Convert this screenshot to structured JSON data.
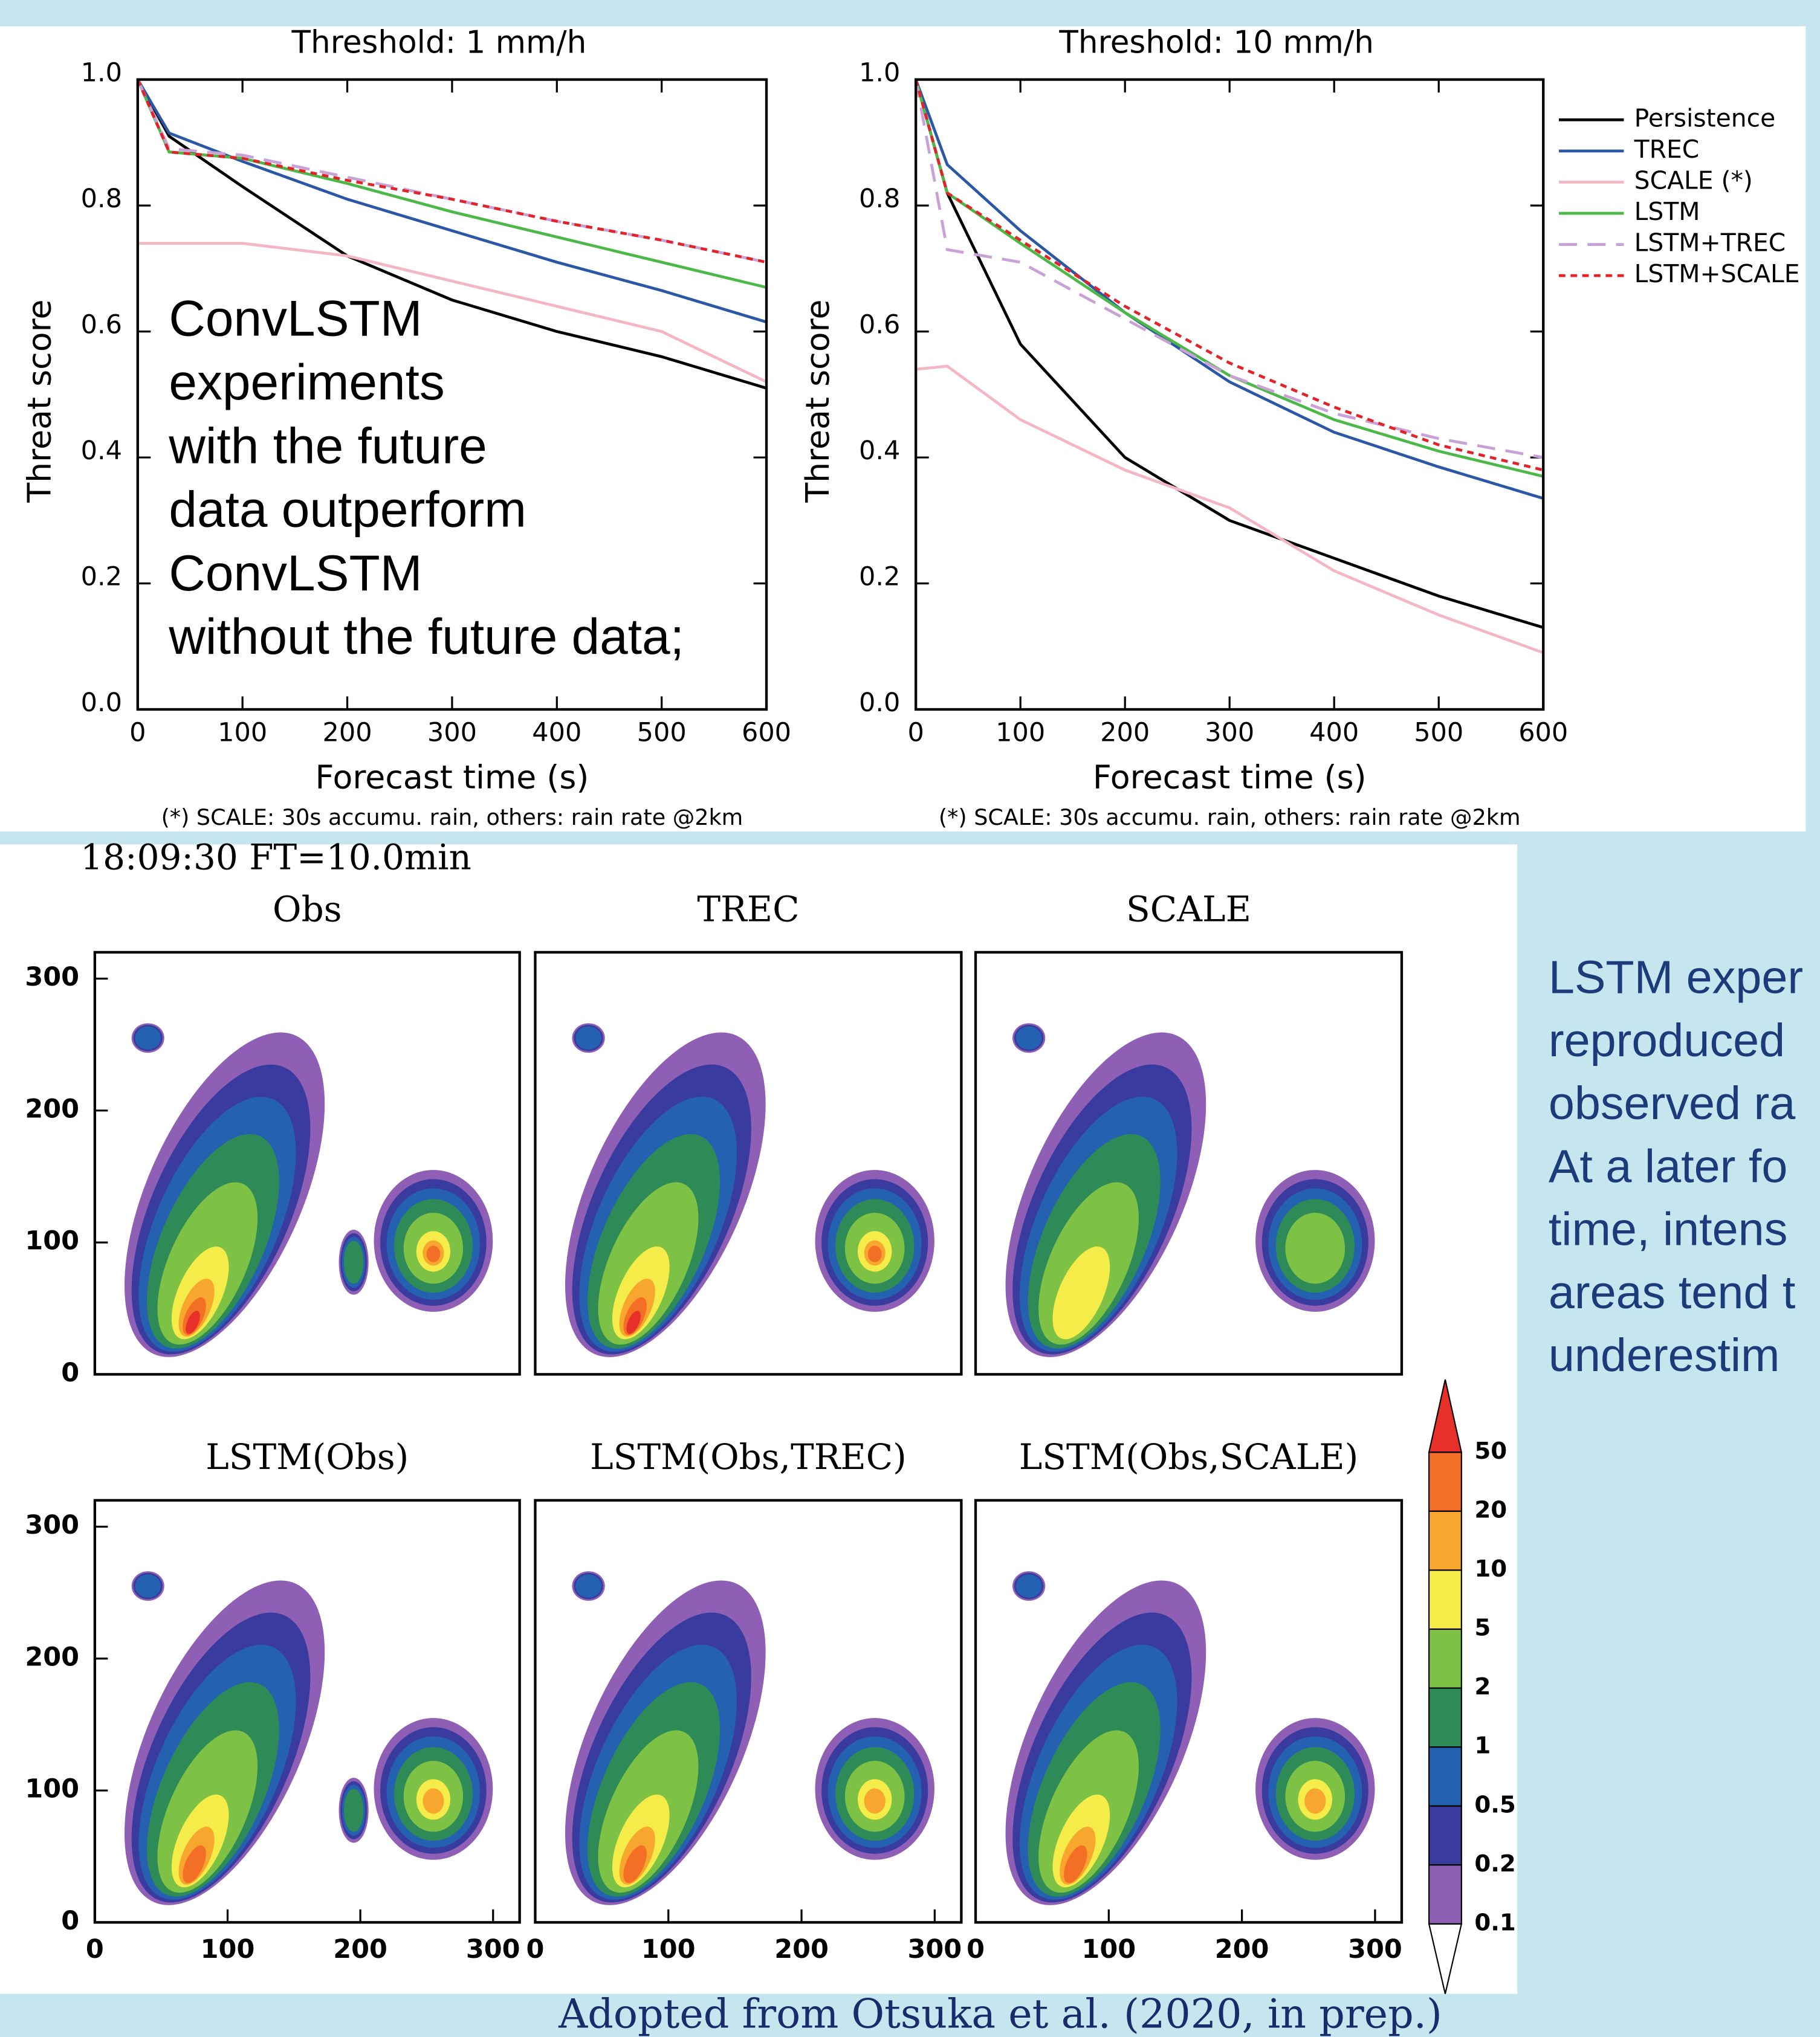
{
  "chart_data": [
    {
      "type": "line",
      "title": "Threshold: 1 mm/h",
      "x_label": "Forecast time (s)",
      "y_label": "Threat score",
      "footnote": "(*) SCALE: 30s accumu. rain, others: rain rate @2km",
      "annotation": [
        "ConvLSTM",
        "experiments",
        "with the future",
        "data outperform",
        "ConvLSTM",
        "without the future data;"
      ],
      "x": [
        0,
        30,
        100,
        200,
        300,
        400,
        500,
        600
      ],
      "series": [
        {
          "color": "#000000",
          "dash": "solid",
          "values": [
            1.0,
            0.91,
            0.83,
            0.72,
            0.65,
            0.6,
            0.56,
            0.51
          ]
        },
        {
          "color": "#2b57a6",
          "dash": "solid",
          "values": [
            1.0,
            0.915,
            0.87,
            0.81,
            0.76,
            0.71,
            0.665,
            0.615
          ]
        },
        {
          "color": "#f4b6c2",
          "dash": "solid",
          "values": [
            0.74,
            0.74,
            0.74,
            0.72,
            0.68,
            0.64,
            0.6,
            0.52
          ]
        },
        {
          "color": "#4cb847",
          "dash": "solid",
          "values": [
            1.0,
            0.885,
            0.875,
            0.835,
            0.79,
            0.75,
            0.71,
            0.67
          ]
        },
        {
          "color": "#c8a2d6",
          "dash": "long",
          "values": [
            1.0,
            0.89,
            0.88,
            0.845,
            0.81,
            0.775,
            0.745,
            0.71
          ]
        },
        {
          "color": "#e0242a",
          "dash": "short",
          "values": [
            1.0,
            0.885,
            0.875,
            0.84,
            0.81,
            0.775,
            0.745,
            0.71
          ]
        }
      ],
      "xlim": [
        0,
        600
      ],
      "ylim": [
        0,
        1
      ],
      "xticks": [
        0,
        100,
        200,
        300,
        400,
        500,
        600
      ],
      "yticks": [
        {
          "value": 0,
          "label": "0.0"
        },
        0.2,
        0.4,
        0.6,
        0.8,
        {
          "value": 1,
          "label": "1.0"
        }
      ]
    },
    {
      "type": "line",
      "title": "Threshold: 10 mm/h",
      "x_label": "Forecast time (s)",
      "y_label": "Threat score",
      "footnote": "(*) SCALE: 30s accumu. rain, others: rain rate @2km",
      "legend": "outside right",
      "x": [
        0,
        30,
        100,
        200,
        300,
        400,
        500,
        600
      ],
      "series": [
        {
          "name": "Persistence",
          "color": "#000000",
          "dash": "solid",
          "values": [
            1.0,
            0.82,
            0.58,
            0.4,
            0.3,
            0.24,
            0.18,
            0.13
          ]
        },
        {
          "name": "TREC",
          "color": "#2b57a6",
          "dash": "solid",
          "values": [
            1.0,
            0.865,
            0.76,
            0.63,
            0.52,
            0.44,
            0.385,
            0.335
          ]
        },
        {
          "name": "SCALE (*)",
          "color": "#f4b6c2",
          "dash": "solid",
          "values": [
            0.54,
            0.545,
            0.46,
            0.38,
            0.32,
            0.22,
            0.15,
            0.09
          ]
        },
        {
          "name": "LSTM",
          "color": "#4cb847",
          "dash": "solid",
          "values": [
            1.0,
            0.82,
            0.74,
            0.63,
            0.53,
            0.46,
            0.41,
            0.37
          ]
        },
        {
          "name": "LSTM+TREC",
          "color": "#c8a2d6",
          "dash": "long",
          "values": [
            1.0,
            0.73,
            0.71,
            0.62,
            0.53,
            0.47,
            0.43,
            0.4
          ]
        },
        {
          "name": "LSTM+SCALE",
          "color": "#e0242a",
          "dash": "short",
          "values": [
            1.0,
            0.82,
            0.745,
            0.64,
            0.55,
            0.48,
            0.42,
            0.38
          ]
        }
      ],
      "xlim": [
        0,
        600
      ],
      "ylim": [
        0,
        1
      ],
      "xticks": [
        0,
        100,
        200,
        300,
        400,
        500,
        600
      ],
      "yticks": [
        {
          "value": 0,
          "label": "0.0"
        },
        0.2,
        0.4,
        0.6,
        0.8,
        {
          "value": 1,
          "label": "1.0"
        }
      ]
    },
    {
      "type": "map",
      "title": "Obs",
      "xlim": [
        0,
        320
      ],
      "ylim": [
        0,
        320
      ],
      "yticks": [
        0,
        100,
        200,
        300
      ]
    },
    {
      "type": "map",
      "title": "TREC",
      "xlim": [
        0,
        320
      ],
      "ylim": [
        0,
        320
      ]
    },
    {
      "type": "map",
      "title": "SCALE",
      "xlim": [
        0,
        320
      ],
      "ylim": [
        0,
        320
      ]
    },
    {
      "type": "map",
      "title": "LSTM(Obs)",
      "xlim": [
        0,
        320
      ],
      "ylim": [
        0,
        320
      ],
      "xticks": [
        0,
        100,
        200,
        300
      ],
      "yticks": [
        0,
        100,
        200,
        300
      ]
    },
    {
      "type": "map",
      "title": "LSTM(Obs,TREC)",
      "xlim": [
        0,
        320
      ],
      "ylim": [
        0,
        320
      ],
      "xticks": [
        0,
        100,
        200,
        300
      ]
    },
    {
      "type": "map",
      "title": "LSTM(Obs,SCALE)",
      "xlim": [
        0,
        320
      ],
      "ylim": [
        0,
        320
      ],
      "xticks": [
        0,
        100,
        200,
        300
      ]
    }
  ],
  "figure_label": "18:09:30 FT=10.0min",
  "colorbar": {
    "levels": [
      50,
      20,
      10,
      5,
      2,
      1,
      0.5,
      0.2,
      0.1
    ],
    "colors": [
      "#e8302a",
      "#f36f25",
      "#f7a72e",
      "#f5ec4a",
      "#7dc244",
      "#2e8a57",
      "#2461b0",
      "#3a3b9e",
      "#8e5fb4",
      "#ffffff"
    ]
  },
  "side_text": [
    "LSTM exper",
    "reproduced",
    "observed ra",
    "At a later fo",
    "time, intens",
    "areas tend t",
    "underestim"
  ],
  "credit": "Adopted from Otsuka et al. (2020, in prep.)"
}
